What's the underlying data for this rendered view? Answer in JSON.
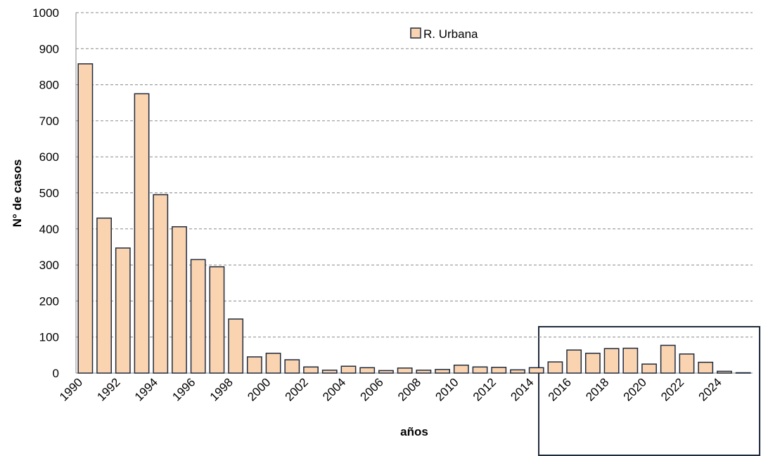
{
  "chart_data": {
    "type": "bar",
    "x_label": "años",
    "y_label": "N° de casos",
    "categories": [
      "1990",
      null,
      "1992",
      null,
      "1994",
      null,
      "1996",
      null,
      "1998",
      null,
      "2000",
      null,
      "2002",
      null,
      "2004",
      null,
      "2006",
      null,
      "2008",
      null,
      "2010",
      null,
      "2012",
      null,
      "2014",
      null,
      "2016",
      null,
      "2018",
      null,
      "2020",
      null,
      "2022",
      null,
      "2024",
      null
    ],
    "series": [
      {
        "name": "R. Urbana",
        "color": "#fad4b0",
        "values": [
          858,
          430,
          347,
          775,
          495,
          406,
          315,
          295,
          150,
          45,
          55,
          37,
          17,
          8,
          19,
          15,
          7,
          14,
          8,
          10,
          22,
          17,
          16,
          9,
          15,
          31,
          64,
          55,
          68,
          69,
          25,
          77,
          53,
          30,
          5,
          1
        ]
      }
    ],
    "ylim": [
      0,
      1000
    ],
    "yticks": [
      0,
      100,
      200,
      300,
      400,
      500,
      600,
      700,
      800,
      900,
      1000
    ],
    "grid": true,
    "legend": "top"
  }
}
